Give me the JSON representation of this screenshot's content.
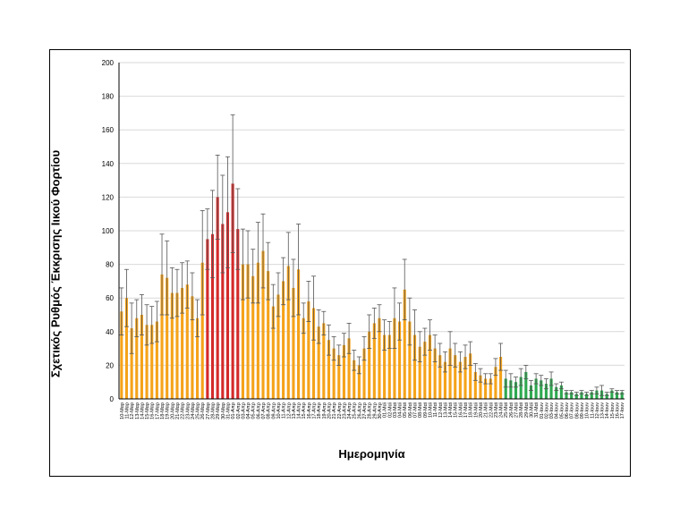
{
  "chart_data": {
    "type": "bar",
    "title": "",
    "xlabel": "Ημερομηνία",
    "ylabel": "Σχετικός Ρυθμός Έκκρισης Ιικού Φορτίου",
    "ylim": [
      0,
      200
    ],
    "yticks": [
      0,
      20,
      40,
      60,
      80,
      100,
      120,
      140,
      160,
      180,
      200
    ],
    "grid": true,
    "legend": "none",
    "colors": {
      "orange": "#F5A31A",
      "red": "#D42A2A",
      "green": "#2EA84F",
      "error": "#555555"
    },
    "series": [
      {
        "color": "orange",
        "points": [
          [
            "10-Μαρ",
            52,
            14
          ],
          [
            "11-Μαρ",
            60,
            17
          ],
          [
            "12-Μαρ",
            42,
            15
          ],
          [
            "13-Μαρ",
            48,
            11
          ],
          [
            "14-Μαρ",
            50,
            12
          ],
          [
            "15-Μαρ",
            44,
            12
          ],
          [
            "16-Μαρ",
            44,
            11
          ],
          [
            "17-Μαρ",
            46,
            12
          ],
          [
            "18-Μαρ",
            74,
            24
          ],
          [
            "19-Μαρ",
            72,
            22
          ],
          [
            "20-Μαρ",
            63,
            15
          ],
          [
            "21-Μαρ",
            63,
            14
          ],
          [
            "22-Μαρ",
            66,
            15
          ],
          [
            "23-Μαρ",
            68,
            14
          ],
          [
            "24-Μαρ",
            61,
            14
          ],
          [
            "25-Μαρ",
            48,
            11
          ],
          [
            "26-Μαρ",
            81,
            31
          ]
        ]
      },
      {
        "color": "red",
        "points": [
          [
            "27-Μαρ",
            95,
            18
          ],
          [
            "28-Μαρ",
            98,
            26
          ],
          [
            "29-Μαρ",
            120,
            25
          ],
          [
            "30-Μαρ",
            104,
            29
          ],
          [
            "31-Μαρ",
            111,
            33
          ],
          [
            "01-Απρ",
            128,
            41
          ],
          [
            "02-Απρ",
            101,
            24
          ]
        ]
      },
      {
        "color": "orange",
        "points": [
          [
            "03-Απρ",
            80,
            21
          ],
          [
            "04-Απρ",
            80,
            20
          ],
          [
            "05-Απρ",
            73,
            16
          ],
          [
            "06-Απρ",
            81,
            24
          ],
          [
            "07-Απρ",
            88,
            22
          ],
          [
            "08-Απρ",
            76,
            17
          ],
          [
            "09-Απρ",
            55,
            13
          ],
          [
            "10-Απρ",
            62,
            13
          ],
          [
            "11-Απρ",
            70,
            14
          ],
          [
            "12-Απρ",
            79,
            20
          ],
          [
            "13-Απρ",
            66,
            17
          ],
          [
            "14-Απρ",
            77,
            27
          ],
          [
            "15-Απρ",
            48,
            9
          ],
          [
            "16-Απρ",
            58,
            12
          ],
          [
            "17-Απρ",
            54,
            19
          ],
          [
            "18-Απρ",
            43,
            10
          ],
          [
            "19-Απρ",
            45,
            7
          ],
          [
            "20-Απρ",
            35,
            9
          ],
          [
            "21-Απρ",
            30,
            7
          ],
          [
            "22-Απρ",
            26,
            6
          ],
          [
            "23-Απρ",
            32,
            7
          ],
          [
            "24-Απρ",
            36,
            9
          ],
          [
            "25-Απρ",
            23,
            6
          ],
          [
            "26-Απρ",
            20,
            5
          ],
          [
            "27-Απρ",
            30,
            7
          ],
          [
            "28-Απρ",
            40,
            10
          ],
          [
            "29-Απρ",
            45,
            9
          ],
          [
            "30-Απρ",
            48,
            8
          ],
          [
            "01-Μαϊ",
            38,
            9
          ],
          [
            "02-Μαϊ",
            38,
            8
          ],
          [
            "03-Μαϊ",
            48,
            18
          ],
          [
            "04-Μαϊ",
            46,
            11
          ],
          [
            "05-Μαϊ",
            65,
            18
          ],
          [
            "06-Μαϊ",
            46,
            14
          ],
          [
            "07-Μαϊ",
            38,
            15
          ],
          [
            "08-Μαϊ",
            31,
            9
          ],
          [
            "09-Μαϊ",
            34,
            8
          ],
          [
            "10-Μαϊ",
            38,
            9
          ],
          [
            "11-Μαϊ",
            30,
            8
          ],
          [
            "12-Μαϊ",
            26,
            7
          ],
          [
            "13-Μαϊ",
            22,
            6
          ],
          [
            "14-Μαϊ",
            30,
            10
          ],
          [
            "15-Μαϊ",
            26,
            7
          ],
          [
            "16-Μαϊ",
            22,
            6
          ],
          [
            "17-Μαϊ",
            25,
            7
          ],
          [
            "18-Μαϊ",
            27,
            7
          ],
          [
            "19-Μαϊ",
            16,
            5
          ],
          [
            "20-Μαϊ",
            14,
            4
          ],
          [
            "21-Μαϊ",
            12,
            3
          ],
          [
            "22-Μαϊ",
            12,
            3
          ],
          [
            "23-Μαϊ",
            19,
            5
          ],
          [
            "24-Μαϊ",
            25,
            8
          ]
        ]
      },
      {
        "color": "green",
        "points": [
          [
            "25-Μαϊ",
            12,
            5
          ],
          [
            "26-Μαϊ",
            11,
            4
          ],
          [
            "27-Μαϊ",
            10,
            3
          ],
          [
            "28-Μαϊ",
            13,
            5
          ],
          [
            "29-Μαϊ",
            16,
            4
          ],
          [
            "30-Μαϊ",
            8,
            3
          ],
          [
            "31-Μαϊ",
            12,
            3
          ],
          [
            "01-Ιουν",
            11,
            3
          ],
          [
            "02-Ιουν",
            9,
            3
          ],
          [
            "03-Ιουν",
            12,
            4
          ],
          [
            "04-Ιουν",
            7,
            2
          ],
          [
            "05-Ιουν",
            8,
            2
          ],
          [
            "06-Ιουν",
            4,
            1
          ],
          [
            "07-Ιουν",
            4,
            1
          ],
          [
            "08-Ιουν",
            3,
            1
          ],
          [
            "09-Ιουν",
            4,
            1
          ],
          [
            "10-Ιουν",
            3,
            1
          ],
          [
            "11-Ιουν",
            4,
            1
          ],
          [
            "12-Ιουν",
            5,
            2
          ],
          [
            "13-Ιουν",
            5,
            3
          ],
          [
            "14-Ιουν",
            3,
            1
          ],
          [
            "15-Ιουν",
            5,
            1
          ],
          [
            "16-Ιουν",
            4,
            1
          ],
          [
            "17-Ιουν",
            4,
            1
          ]
        ]
      }
    ],
    "x_tick_labels_shown": [
      "10-Μαρ",
      "11-Μαρ",
      "12-Μαρ",
      "13-Μαρ",
      "14-Μαρ",
      "15-Μαρ",
      "16-Μαρ",
      "17-Μαρ",
      "18-Μαρ",
      "19-Μαρ",
      "20-Μαρ",
      "21-Μαρ",
      "22-Μαρ",
      "23-Μαρ",
      "24-Μαρ",
      "25-Μαρ",
      "26-Μαρ",
      "27-Μαρ",
      "28-Μαρ",
      "29-Μαρ",
      "30-Μαρ",
      "31-Μαρ",
      "01-Απρ",
      "02-Απρ",
      "03-Απρ",
      "04-Απρ",
      "05-Απρ",
      "06-Απρ",
      "07-Απρ",
      "08-Απρ",
      "09-Απρ",
      "10-Απρ",
      "11-Απρ",
      "12-Απρ",
      "13-Απρ",
      "14-Απρ",
      "15-Απρ",
      "16-Απρ",
      "17-Απρ",
      "18-Απρ",
      "19-Απρ",
      "20-Απρ",
      "21-Απρ",
      "22-Απρ",
      "23-Απρ",
      "24-Απρ",
      "25-Απρ",
      "26-Απρ",
      "27-Απρ",
      "28-Απρ",
      "29-Απρ",
      "30-Απρ",
      "01-Μαϊ",
      "02-Μαϊ",
      "03-Μαϊ",
      "04-Μαϊ",
      "05-Μαϊ",
      "06-Μαϊ",
      "07-Μαϊ",
      "08-Μαϊ",
      "09-Μαϊ",
      "10-Μαϊ",
      "11-Μαϊ",
      "12-Μαϊ",
      "13-Μαϊ",
      "14-Μαϊ",
      "15-Μαϊ",
      "16-Μαϊ",
      "17-Μαϊ",
      "18-Μαϊ",
      "19-Μαϊ",
      "20-Μαϊ",
      "21-Μαϊ",
      "22-Μαϊ",
      "23-Μαϊ",
      "24-Μαϊ",
      "25-Μαϊ",
      "26-Μαϊ",
      "27-Μαϊ",
      "28-Μαϊ",
      "29-Μαϊ",
      "30-Μαϊ",
      "31-Μαϊ",
      "01-Ιουν",
      "02-Ιουν",
      "03-Ιουν",
      "04-Ιουν",
      "05-Ιουν",
      "06-Ιουν",
      "07-Ιουν",
      "08-Ιουν",
      "09-Ιουν",
      "10-Ιουν",
      "11-Ιουν",
      "12-Ιουν",
      "13-Ιουν",
      "14-Ιουν",
      "15-Ιουν",
      "16-Ιουν",
      "17-Ιουν"
    ]
  }
}
